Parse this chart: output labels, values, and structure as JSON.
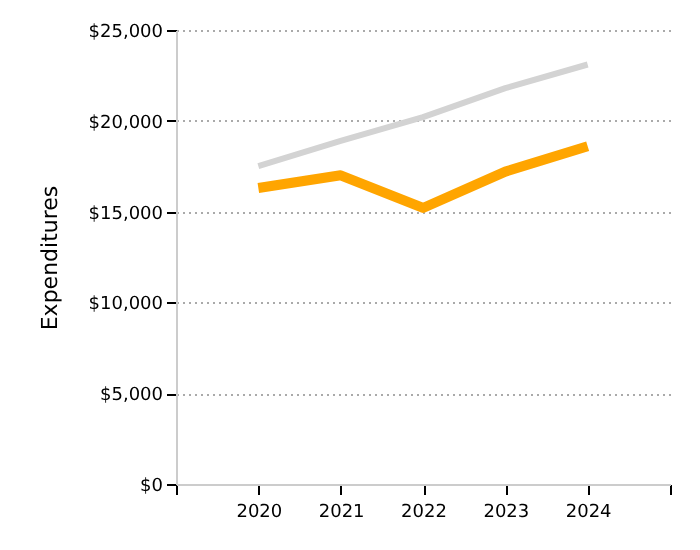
{
  "chart_data": {
    "type": "line",
    "ylabel": "Expenditures",
    "x": [
      2020,
      2021,
      2022,
      2023,
      2024
    ],
    "series": [
      {
        "color": "#d3d3d3",
        "values": [
          17500,
          18900,
          20200,
          21800,
          23100
        ]
      },
      {
        "color": "#ffa500",
        "values": [
          16300,
          17000,
          15200,
          17200,
          18600
        ]
      }
    ],
    "xlim": [
      2019,
      2025
    ],
    "xticks": [
      {
        "value": 2019,
        "label": null
      },
      2020,
      2021,
      2022,
      2023,
      2024,
      {
        "value": 2025,
        "label": null
      }
    ],
    "ylim": [
      0,
      25000
    ],
    "yticks": [
      {
        "value": 0,
        "label": "$0"
      },
      {
        "value": 5000,
        "label": "$5,000"
      },
      {
        "value": 10000,
        "label": "$10,000"
      },
      {
        "value": 15000,
        "label": "$15,000"
      },
      {
        "value": 20000,
        "label": "$20,000"
      },
      {
        "value": 25000,
        "label": "$25,000"
      }
    ],
    "grid": "y",
    "marker": "none",
    "line_style": "solid"
  }
}
